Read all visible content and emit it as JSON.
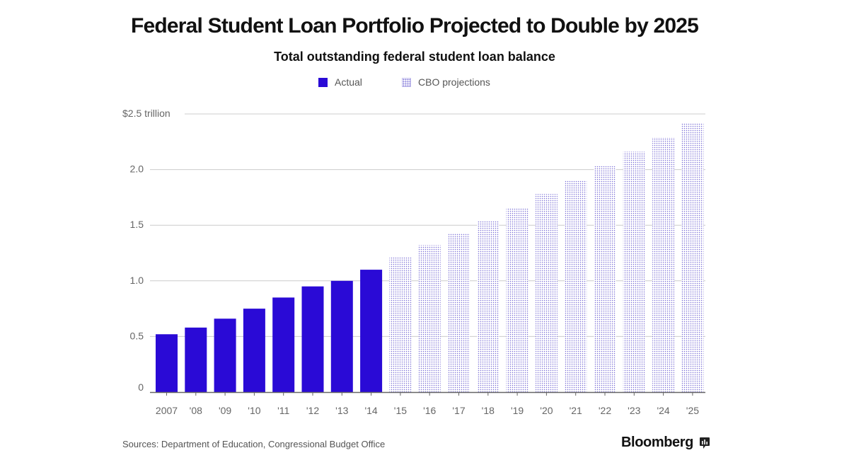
{
  "title": "Federal Student Loan Portfolio Projected to Double by 2025",
  "brand": "Bloomberg",
  "source": "Sources: Department of Education, Congressional Budget Office",
  "colors": {
    "actual": "#2a0ad6",
    "projection_dot": "#7a6fd6",
    "grid": "#cccccc",
    "axis": "#666666"
  },
  "chart_data": {
    "type": "bar",
    "title": "Total outstanding federal student loan balance",
    "xlabel": "",
    "ylabel": "",
    "ylim": [
      0,
      2.5
    ],
    "yticks": [
      0,
      0.5,
      1.0,
      1.5,
      2.0,
      2.5
    ],
    "ytick_labels": [
      "0",
      "0.5",
      "1.0",
      "1.5",
      "2.0",
      "$2.5 trillion"
    ],
    "grid": true,
    "legend_position": "top-center",
    "categories": [
      "2007",
      "'08",
      "'09",
      "'10",
      "'11",
      "'12",
      "'13",
      "'14",
      "'15",
      "'16",
      "'17",
      "'18",
      "'19",
      "'20",
      "'21",
      "'22",
      "'23",
      "'24",
      "'25"
    ],
    "series": [
      {
        "name": "Actual",
        "style": "solid",
        "values": [
          0.52,
          0.58,
          0.66,
          0.75,
          0.85,
          0.95,
          1.0,
          1.1,
          null,
          null,
          null,
          null,
          null,
          null,
          null,
          null,
          null,
          null,
          null
        ]
      },
      {
        "name": "CBO projections",
        "style": "dotted",
        "values": [
          null,
          null,
          null,
          null,
          null,
          null,
          null,
          null,
          1.21,
          1.32,
          1.43,
          1.54,
          1.65,
          1.78,
          1.9,
          2.03,
          2.16,
          2.29,
          2.42
        ]
      }
    ]
  }
}
